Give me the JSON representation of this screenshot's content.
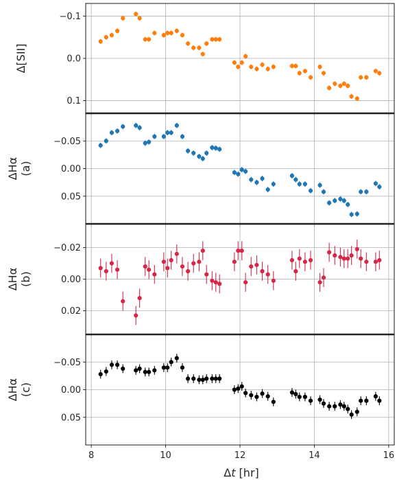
{
  "chart_data": [
    {
      "type": "scatter",
      "ylabel": "Δ[SII]",
      "ylim": [
        0.13,
        -0.13
      ],
      "yticks": [
        -0.1,
        0.0,
        0.1
      ],
      "ytick_labels": [
        "−0.1",
        "0.0",
        "0.1"
      ],
      "grid": true,
      "color": "#ff7f0e",
      "x": [
        8.25,
        8.4,
        8.55,
        8.7,
        8.85,
        9.2,
        9.3,
        9.45,
        9.55,
        9.7,
        9.95,
        10.05,
        10.15,
        10.3,
        10.45,
        10.6,
        10.75,
        10.9,
        11.0,
        11.1,
        11.25,
        11.35,
        11.45,
        11.85,
        11.95,
        12.05,
        12.15,
        12.3,
        12.45,
        12.6,
        12.75,
        12.9,
        13.4,
        13.5,
        13.6,
        13.75,
        13.9,
        14.15,
        14.25,
        14.4,
        14.55,
        14.7,
        14.8,
        14.9,
        15.0,
        15.15,
        15.25,
        15.4,
        15.65,
        15.75
      ],
      "y": [
        -0.04,
        -0.05,
        -0.055,
        -0.065,
        -0.095,
        -0.105,
        -0.095,
        -0.045,
        -0.045,
        -0.06,
        -0.055,
        -0.06,
        -0.06,
        -0.065,
        -0.055,
        -0.035,
        -0.025,
        -0.025,
        -0.01,
        -0.035,
        -0.045,
        -0.045,
        -0.045,
        0.01,
        0.02,
        0.01,
        -0.005,
        0.02,
        0.025,
        0.015,
        0.025,
        0.02,
        0.018,
        0.018,
        0.035,
        0.03,
        0.045,
        0.02,
        0.035,
        0.07,
        0.06,
        0.065,
        0.06,
        0.065,
        0.09,
        0.095,
        0.045,
        0.045,
        0.03,
        0.035
      ],
      "yerr": 0.006
    },
    {
      "type": "scatter",
      "ylabel": "ΔHα",
      "ylabel2": "(a)",
      "ylim": [
        0.1,
        -0.1
      ],
      "yticks": [
        -0.05,
        0.0,
        0.05
      ],
      "ytick_labels": [
        "−0.05",
        "0.00",
        "0.05"
      ],
      "grid": true,
      "color": "#1f77b4",
      "x": [
        8.25,
        8.4,
        8.55,
        8.7,
        8.85,
        9.2,
        9.3,
        9.45,
        9.55,
        9.7,
        9.95,
        10.05,
        10.15,
        10.3,
        10.45,
        10.6,
        10.75,
        10.9,
        11.0,
        11.1,
        11.25,
        11.35,
        11.45,
        11.85,
        11.95,
        12.05,
        12.15,
        12.3,
        12.45,
        12.6,
        12.75,
        12.9,
        13.4,
        13.5,
        13.6,
        13.75,
        13.9,
        14.15,
        14.25,
        14.4,
        14.55,
        14.7,
        14.8,
        14.9,
        15.0,
        15.15,
        15.25,
        15.4,
        15.65,
        15.75
      ],
      "y": [
        -0.042,
        -0.05,
        -0.065,
        -0.068,
        -0.076,
        -0.078,
        -0.074,
        -0.046,
        -0.048,
        -0.058,
        -0.058,
        -0.065,
        -0.065,
        -0.078,
        -0.058,
        -0.032,
        -0.028,
        -0.022,
        -0.018,
        -0.028,
        -0.038,
        -0.037,
        -0.035,
        0.007,
        0.01,
        0.002,
        0.005,
        0.02,
        0.025,
        0.018,
        0.038,
        0.028,
        0.013,
        0.02,
        0.028,
        0.028,
        0.04,
        0.03,
        0.042,
        0.062,
        0.058,
        0.055,
        0.058,
        0.065,
        0.083,
        0.082,
        0.042,
        0.042,
        0.027,
        0.033
      ],
      "yerr": 0.005
    },
    {
      "type": "scatter",
      "ylabel": "ΔHα",
      "ylabel2": "(b)",
      "ylim": [
        0.035,
        -0.035
      ],
      "yticks": [
        -0.02,
        0.0,
        0.02
      ],
      "ytick_labels": [
        "−0.02",
        "0.00",
        "0.02"
      ],
      "grid": true,
      "color": "#d62748",
      "x": [
        8.25,
        8.4,
        8.55,
        8.7,
        8.85,
        9.2,
        9.3,
        9.45,
        9.55,
        9.7,
        9.95,
        10.05,
        10.15,
        10.3,
        10.45,
        10.6,
        10.75,
        10.9,
        11.0,
        11.1,
        11.25,
        11.35,
        11.45,
        11.85,
        11.95,
        12.05,
        12.15,
        12.3,
        12.45,
        12.6,
        12.75,
        12.9,
        13.4,
        13.5,
        13.6,
        13.75,
        13.9,
        14.15,
        14.25,
        14.4,
        14.55,
        14.7,
        14.8,
        14.9,
        15.0,
        15.15,
        15.25,
        15.4,
        15.65,
        15.75
      ],
      "y": [
        -0.007,
        -0.005,
        -0.01,
        -0.006,
        0.014,
        0.023,
        0.012,
        -0.008,
        -0.006,
        -0.003,
        -0.011,
        -0.007,
        -0.012,
        -0.016,
        -0.008,
        -0.005,
        -0.01,
        -0.011,
        -0.018,
        -0.003,
        0.001,
        0.002,
        0.003,
        -0.011,
        -0.018,
        -0.018,
        0.002,
        -0.008,
        -0.009,
        -0.005,
        -0.003,
        0.001,
        -0.012,
        -0.005,
        -0.013,
        -0.011,
        -0.012,
        0.002,
        -0.001,
        -0.017,
        -0.015,
        -0.014,
        -0.013,
        -0.013,
        -0.015,
        -0.019,
        -0.013,
        -0.011,
        -0.011,
        -0.012
      ],
      "yerr": 0.006
    },
    {
      "type": "scatter",
      "ylabel": "ΔHα",
      "ylabel2": "(c)",
      "ylim": [
        0.1,
        -0.1
      ],
      "yticks": [
        -0.05,
        0.0,
        0.05
      ],
      "ytick_labels": [
        "−0.05",
        "0.00",
        "0.05"
      ],
      "grid": true,
      "color": "#000000",
      "x": [
        8.25,
        8.4,
        8.55,
        8.7,
        8.85,
        9.2,
        9.3,
        9.45,
        9.55,
        9.7,
        9.95,
        10.05,
        10.15,
        10.3,
        10.45,
        10.6,
        10.75,
        10.9,
        11.0,
        11.1,
        11.25,
        11.35,
        11.45,
        11.85,
        11.95,
        12.05,
        12.15,
        12.3,
        12.45,
        12.6,
        12.75,
        12.9,
        13.4,
        13.5,
        13.6,
        13.75,
        13.9,
        14.15,
        14.25,
        14.4,
        14.55,
        14.7,
        14.8,
        14.9,
        15.0,
        15.15,
        15.25,
        15.4,
        15.65,
        15.75
      ],
      "y": [
        -0.028,
        -0.033,
        -0.045,
        -0.045,
        -0.038,
        -0.035,
        -0.038,
        -0.032,
        -0.032,
        -0.035,
        -0.04,
        -0.04,
        -0.05,
        -0.057,
        -0.04,
        -0.02,
        -0.02,
        -0.018,
        -0.018,
        -0.02,
        -0.02,
        -0.02,
        -0.02,
        0.0,
        -0.002,
        -0.006,
        0.006,
        0.01,
        0.013,
        0.007,
        0.012,
        0.022,
        0.005,
        0.008,
        0.013,
        0.013,
        0.02,
        0.018,
        0.025,
        0.03,
        0.03,
        0.027,
        0.03,
        0.035,
        0.045,
        0.04,
        0.02,
        0.02,
        0.012,
        0.02
      ],
      "yerr": 0.008
    }
  ],
  "xaxis": {
    "label_prefix": "Δ",
    "label_var": "t",
    "label_unit": " [hr]",
    "xlim": [
      7.85,
      16.15
    ],
    "ticks": [
      8,
      10,
      12,
      14,
      16
    ],
    "tick_labels": [
      "8",
      "10",
      "12",
      "14",
      "16"
    ]
  }
}
